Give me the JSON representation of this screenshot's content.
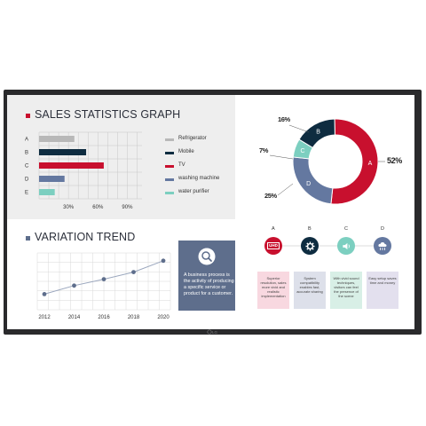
{
  "sales": {
    "title": "SALES STATISTICS GRAPH",
    "accent": "#c8102e",
    "chart_data": {
      "type": "bar",
      "categories": [
        "A",
        "B",
        "C",
        "D",
        "E"
      ],
      "values": [
        36,
        48,
        66,
        26,
        16
      ],
      "colors": [
        "#b8b8b8",
        "#0e2c40",
        "#c8102e",
        "#6478a0",
        "#7ccfc0"
      ],
      "xticks": [
        "30%",
        "60%",
        "90%"
      ],
      "xlim": [
        0,
        105
      ],
      "grid": true
    },
    "legend": [
      {
        "label": "Refrigerator",
        "color": "#b8b8b8"
      },
      {
        "label": "Mobile",
        "color": "#0e2c40"
      },
      {
        "label": "TV",
        "color": "#c8102e"
      },
      {
        "label": "washing machine",
        "color": "#6478a0"
      },
      {
        "label": "water purifier",
        "color": "#7ccfc0"
      }
    ]
  },
  "donut": {
    "chart_data": {
      "type": "pie",
      "categories": [
        "A",
        "B",
        "C",
        "D"
      ],
      "values": [
        52,
        16,
        7,
        25
      ],
      "labels": [
        "52%",
        "16%",
        "7%",
        "25%"
      ],
      "colors": [
        "#c8102e",
        "#0e2c40",
        "#7ccfc0",
        "#6478a0"
      ]
    }
  },
  "trend": {
    "title": "VARIATION TREND",
    "accent": "#5e6e8c",
    "chart_data": {
      "type": "line",
      "x": [
        "2012",
        "2014",
        "2016",
        "2018",
        "2020"
      ],
      "values": [
        2.2,
        3.4,
        4.3,
        5.3,
        6.9
      ],
      "ylim": [
        0,
        8
      ],
      "grid": true,
      "color": "#5e6e8c"
    }
  },
  "info_box": {
    "text": "A business process is the activity of producing a specific service or product for a customer.",
    "icon": "search-icon"
  },
  "features": [
    {
      "letter": "A",
      "icon": "uhd-icon",
      "icon_text": "UHD",
      "color": "#c8102e",
      "card_color": "#f8d8e0",
      "text": "Superior resolution, sales more vivid and realistic implementation"
    },
    {
      "letter": "B",
      "icon": "gear-icon",
      "color": "#0e2c40",
      "card_color": "#dde0ea",
      "text": "System compatibility enables fast, accurate sharing"
    },
    {
      "letter": "C",
      "icon": "speaker-icon",
      "color": "#7ccfc0",
      "card_color": "#d8efe6",
      "text": "With vivid sound techniques, visitors can feel the presence of the scene"
    },
    {
      "letter": "D",
      "icon": "cloud-icon",
      "color": "#6478a0",
      "card_color": "#e3e0ee",
      "text": "Easy setup saves time and money"
    }
  ],
  "brand": {
    "logo": "lg-logo"
  }
}
